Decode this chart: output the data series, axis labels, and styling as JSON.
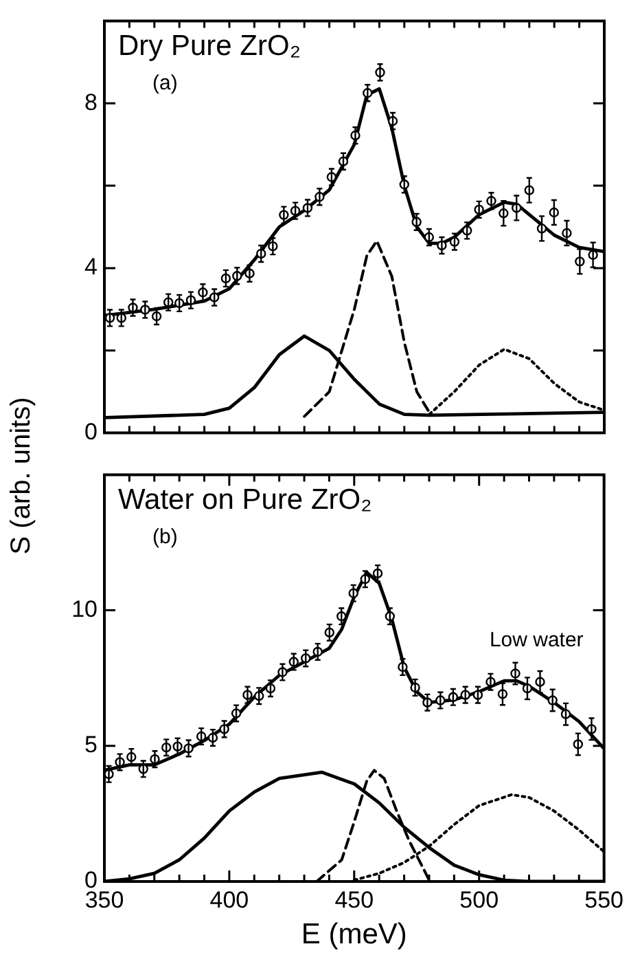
{
  "chart_data": [
    {
      "type": "line",
      "title": "Dry Pure ZrO₂",
      "ylabel": "S (arb. units)",
      "annotations": [
        "(a)"
      ],
      "xlim": [
        350,
        550
      ],
      "ylim": [
        0,
        10
      ],
      "xticks": [
        {
          "value": 350,
          "label": null
        },
        {
          "value": 360,
          "label": null
        },
        {
          "value": 370,
          "label": null
        },
        {
          "value": 380,
          "label": null
        },
        {
          "value": 390,
          "label": null
        },
        {
          "value": 400,
          "label": null
        },
        {
          "value": 410,
          "label": null
        },
        {
          "value": 420,
          "label": null
        },
        {
          "value": 430,
          "label": null
        },
        {
          "value": 440,
          "label": null
        },
        {
          "value": 450,
          "label": null
        },
        {
          "value": 460,
          "label": null
        },
        {
          "value": 470,
          "label": null
        },
        {
          "value": 480,
          "label": null
        },
        {
          "value": 490,
          "label": null
        },
        {
          "value": 500,
          "label": null
        },
        {
          "value": 510,
          "label": null
        },
        {
          "value": 520,
          "label": null
        },
        {
          "value": 530,
          "label": null
        },
        {
          "value": 540,
          "label": null
        },
        {
          "value": 550,
          "label": null
        }
      ],
      "yticks": [
        0,
        {
          "value": 2,
          "label": null
        },
        4,
        {
          "value": 6,
          "label": null
        },
        8,
        {
          "value": 10,
          "label": null
        }
      ],
      "tick_labels": "y",
      "series": [
        {
          "type": "scatter",
          "marker": "circle",
          "color": "#000000",
          "x": [
            352.2,
            356.8,
            361.4,
            366.3,
            370.9,
            375.6,
            380,
            384.6,
            389.4,
            394,
            398.6,
            403.1,
            408.1,
            412.7,
            417.4,
            421.8,
            426.4,
            431.3,
            436.1,
            440.9,
            445.6,
            450.4,
            455.3,
            460.3,
            465.4,
            470,
            474.9,
            479.9,
            485,
            490.1,
            495.1,
            499.9,
            504.8,
            509.7,
            514.9,
            520,
            525,
            529.9,
            535,
            540.2,
            545.5
          ],
          "values": [
            2.79,
            2.79,
            3.04,
            2.99,
            2.83,
            3.17,
            3.15,
            3.22,
            3.41,
            3.29,
            3.75,
            3.81,
            3.87,
            4.35,
            4.53,
            5.29,
            5.39,
            5.46,
            5.73,
            6.21,
            6.59,
            7.22,
            8.25,
            8.75,
            7.57,
            6.03,
            5.12,
            4.75,
            4.55,
            4.64,
            4.91,
            5.42,
            5.63,
            5.33,
            5.46,
            5.89,
            4.96,
            5.35,
            4.85,
            4.16,
            4.32
          ],
          "errors": [
            0.2,
            0.2,
            0.2,
            0.2,
            0.2,
            0.2,
            0.2,
            0.2,
            0.2,
            0.2,
            0.2,
            0.2,
            0.2,
            0.2,
            0.2,
            0.2,
            0.2,
            0.2,
            0.2,
            0.2,
            0.2,
            0.2,
            0.2,
            0.2,
            0.2,
            0.2,
            0.2,
            0.2,
            0.2,
            0.2,
            0.2,
            0.2,
            0.2,
            0.3,
            0.3,
            0.3,
            0.3,
            0.3,
            0.3,
            0.3,
            0.3
          ]
        },
        {
          "type": "line",
          "marker": "none",
          "line_style": "solid",
          "color": "#000000",
          "x": [
            350,
            370,
            390,
            400,
            410,
            420,
            430,
            440,
            450,
            455,
            460,
            465,
            470,
            475,
            480,
            485,
            490,
            500,
            510,
            515,
            520,
            530,
            540,
            550
          ],
          "values": [
            2.85,
            3.0,
            3.2,
            3.5,
            4.2,
            5.0,
            5.4,
            5.9,
            7.0,
            8.2,
            8.35,
            7.4,
            6.0,
            5.0,
            4.6,
            4.6,
            4.75,
            5.3,
            5.6,
            5.55,
            5.3,
            4.8,
            4.5,
            4.4
          ]
        },
        {
          "type": "line",
          "marker": "none",
          "line_style": "solid",
          "color": "#000000",
          "x": [
            350,
            390,
            400,
            410,
            420,
            430,
            440,
            450,
            460,
            470,
            480,
            550
          ],
          "values": [
            0.37,
            0.45,
            0.6,
            1.1,
            1.9,
            2.35,
            2.0,
            1.3,
            0.7,
            0.45,
            0.43,
            0.5
          ]
        },
        {
          "type": "line",
          "marker": "none",
          "line_style": "dashed",
          "color": "#000000",
          "x": [
            430,
            440,
            450,
            455,
            459,
            465,
            470,
            475,
            480
          ],
          "values": [
            0.4,
            1.0,
            3.0,
            4.3,
            4.66,
            3.8,
            2.2,
            1.0,
            0.5
          ]
        },
        {
          "type": "line",
          "marker": "none",
          "line_style": "dotted",
          "color": "#000000",
          "x": [
            480,
            490,
            500,
            510,
            520,
            530,
            540,
            550
          ],
          "values": [
            0.45,
            1.0,
            1.65,
            2.03,
            1.8,
            1.2,
            0.75,
            0.55
          ]
        }
      ]
    },
    {
      "type": "line",
      "title": "Water on Pure ZrO₂",
      "xlabel": "E (meV)",
      "annotations": [
        "(b)",
        "Low water"
      ],
      "xlim": [
        350,
        550
      ],
      "ylim": [
        0,
        15
      ],
      "xticks": [
        350,
        {
          "value": 360,
          "label": null
        },
        {
          "value": 370,
          "label": null
        },
        {
          "value": 380,
          "label": null
        },
        {
          "value": 390,
          "label": null
        },
        400,
        {
          "value": 410,
          "label": null
        },
        {
          "value": 420,
          "label": null
        },
        {
          "value": 430,
          "label": null
        },
        {
          "value": 440,
          "label": null
        },
        450,
        {
          "value": 460,
          "label": null
        },
        {
          "value": 470,
          "label": null
        },
        {
          "value": 480,
          "label": null
        },
        {
          "value": 490,
          "label": null
        },
        500,
        {
          "value": 510,
          "label": null
        },
        {
          "value": 520,
          "label": null
        },
        {
          "value": 530,
          "label": null
        },
        {
          "value": 540,
          "label": null
        },
        550
      ],
      "yticks": [
        0,
        5,
        10
      ],
      "series": [
        {
          "type": "scatter",
          "marker": "circle",
          "color": "#000000",
          "x": [
            351.8,
            356.2,
            360.8,
            365.6,
            370.2,
            374.8,
            379.3,
            383.7,
            388.8,
            393.4,
            398,
            402.8,
            407.3,
            411.9,
            416.5,
            421.3,
            425.8,
            430.6,
            435.4,
            440.1,
            444.9,
            449.7,
            454.4,
            459.4,
            464.3,
            469.4,
            474.4,
            479.3,
            484.5,
            489.6,
            494.5,
            499.5,
            504.6,
            509.4,
            514.5,
            519.3,
            524.4,
            529.4,
            534.7,
            539.6,
            545
          ],
          "values": [
            3.96,
            4.4,
            4.59,
            4.15,
            4.51,
            4.94,
            4.98,
            4.91,
            5.35,
            5.3,
            5.62,
            6.2,
            6.88,
            6.84,
            7.12,
            7.72,
            8.1,
            8.23,
            8.47,
            9.18,
            9.78,
            10.63,
            11.15,
            11.36,
            9.78,
            7.91,
            7.15,
            6.6,
            6.68,
            6.8,
            6.88,
            6.88,
            7.36,
            6.91,
            7.67,
            7.12,
            7.36,
            6.68,
            6.17,
            5.06,
            5.62
          ],
          "errors": [
            0.3,
            0.3,
            0.3,
            0.3,
            0.3,
            0.3,
            0.3,
            0.3,
            0.3,
            0.3,
            0.3,
            0.3,
            0.3,
            0.3,
            0.3,
            0.3,
            0.3,
            0.3,
            0.3,
            0.3,
            0.3,
            0.3,
            0.3,
            0.3,
            0.3,
            0.3,
            0.3,
            0.3,
            0.3,
            0.3,
            0.3,
            0.3,
            0.3,
            0.4,
            0.4,
            0.4,
            0.4,
            0.4,
            0.4,
            0.4,
            0.4
          ]
        },
        {
          "type": "line",
          "marker": "none",
          "line_style": "solid",
          "color": "#000000",
          "x": [
            350,
            360,
            370,
            380,
            390,
            400,
            410,
            420,
            430,
            440,
            445,
            450,
            455,
            460,
            465,
            470,
            475,
            480,
            490,
            500,
            510,
            515,
            520,
            530,
            540,
            550
          ],
          "values": [
            4.1,
            4.3,
            4.3,
            4.7,
            5.2,
            5.8,
            6.8,
            7.6,
            8.1,
            8.6,
            9.3,
            10.5,
            11.4,
            11.0,
            9.7,
            7.9,
            7.0,
            6.6,
            6.7,
            7.0,
            7.4,
            7.4,
            7.2,
            6.6,
            5.9,
            4.9
          ]
        },
        {
          "type": "line",
          "marker": "none",
          "line_style": "solid",
          "color": "#000000",
          "x": [
            350,
            360,
            370,
            380,
            390,
            400,
            410,
            420,
            437,
            450,
            460,
            470,
            480,
            490,
            500,
            510,
            520,
            550
          ],
          "values": [
            0.0,
            0.1,
            0.3,
            0.8,
            1.6,
            2.6,
            3.3,
            3.8,
            4.03,
            3.6,
            2.9,
            2.0,
            1.25,
            0.6,
            0.25,
            0.05,
            0.0,
            0.0
          ]
        },
        {
          "type": "line",
          "marker": "none",
          "line_style": "dashed",
          "color": "#000000",
          "x": [
            435,
            445,
            450,
            455,
            458,
            462,
            467,
            472,
            477,
            480
          ],
          "values": [
            0.0,
            0.8,
            2.2,
            3.7,
            4.1,
            3.8,
            2.6,
            1.5,
            0.6,
            0.05
          ]
        },
        {
          "type": "line",
          "marker": "none",
          "line_style": "dotted",
          "color": "#000000",
          "x": [
            450,
            460,
            470,
            480,
            490,
            500,
            513,
            520,
            530,
            540,
            550
          ],
          "values": [
            0.05,
            0.3,
            0.7,
            1.3,
            2.1,
            2.8,
            3.2,
            3.1,
            2.6,
            1.9,
            1.1
          ]
        }
      ]
    }
  ]
}
